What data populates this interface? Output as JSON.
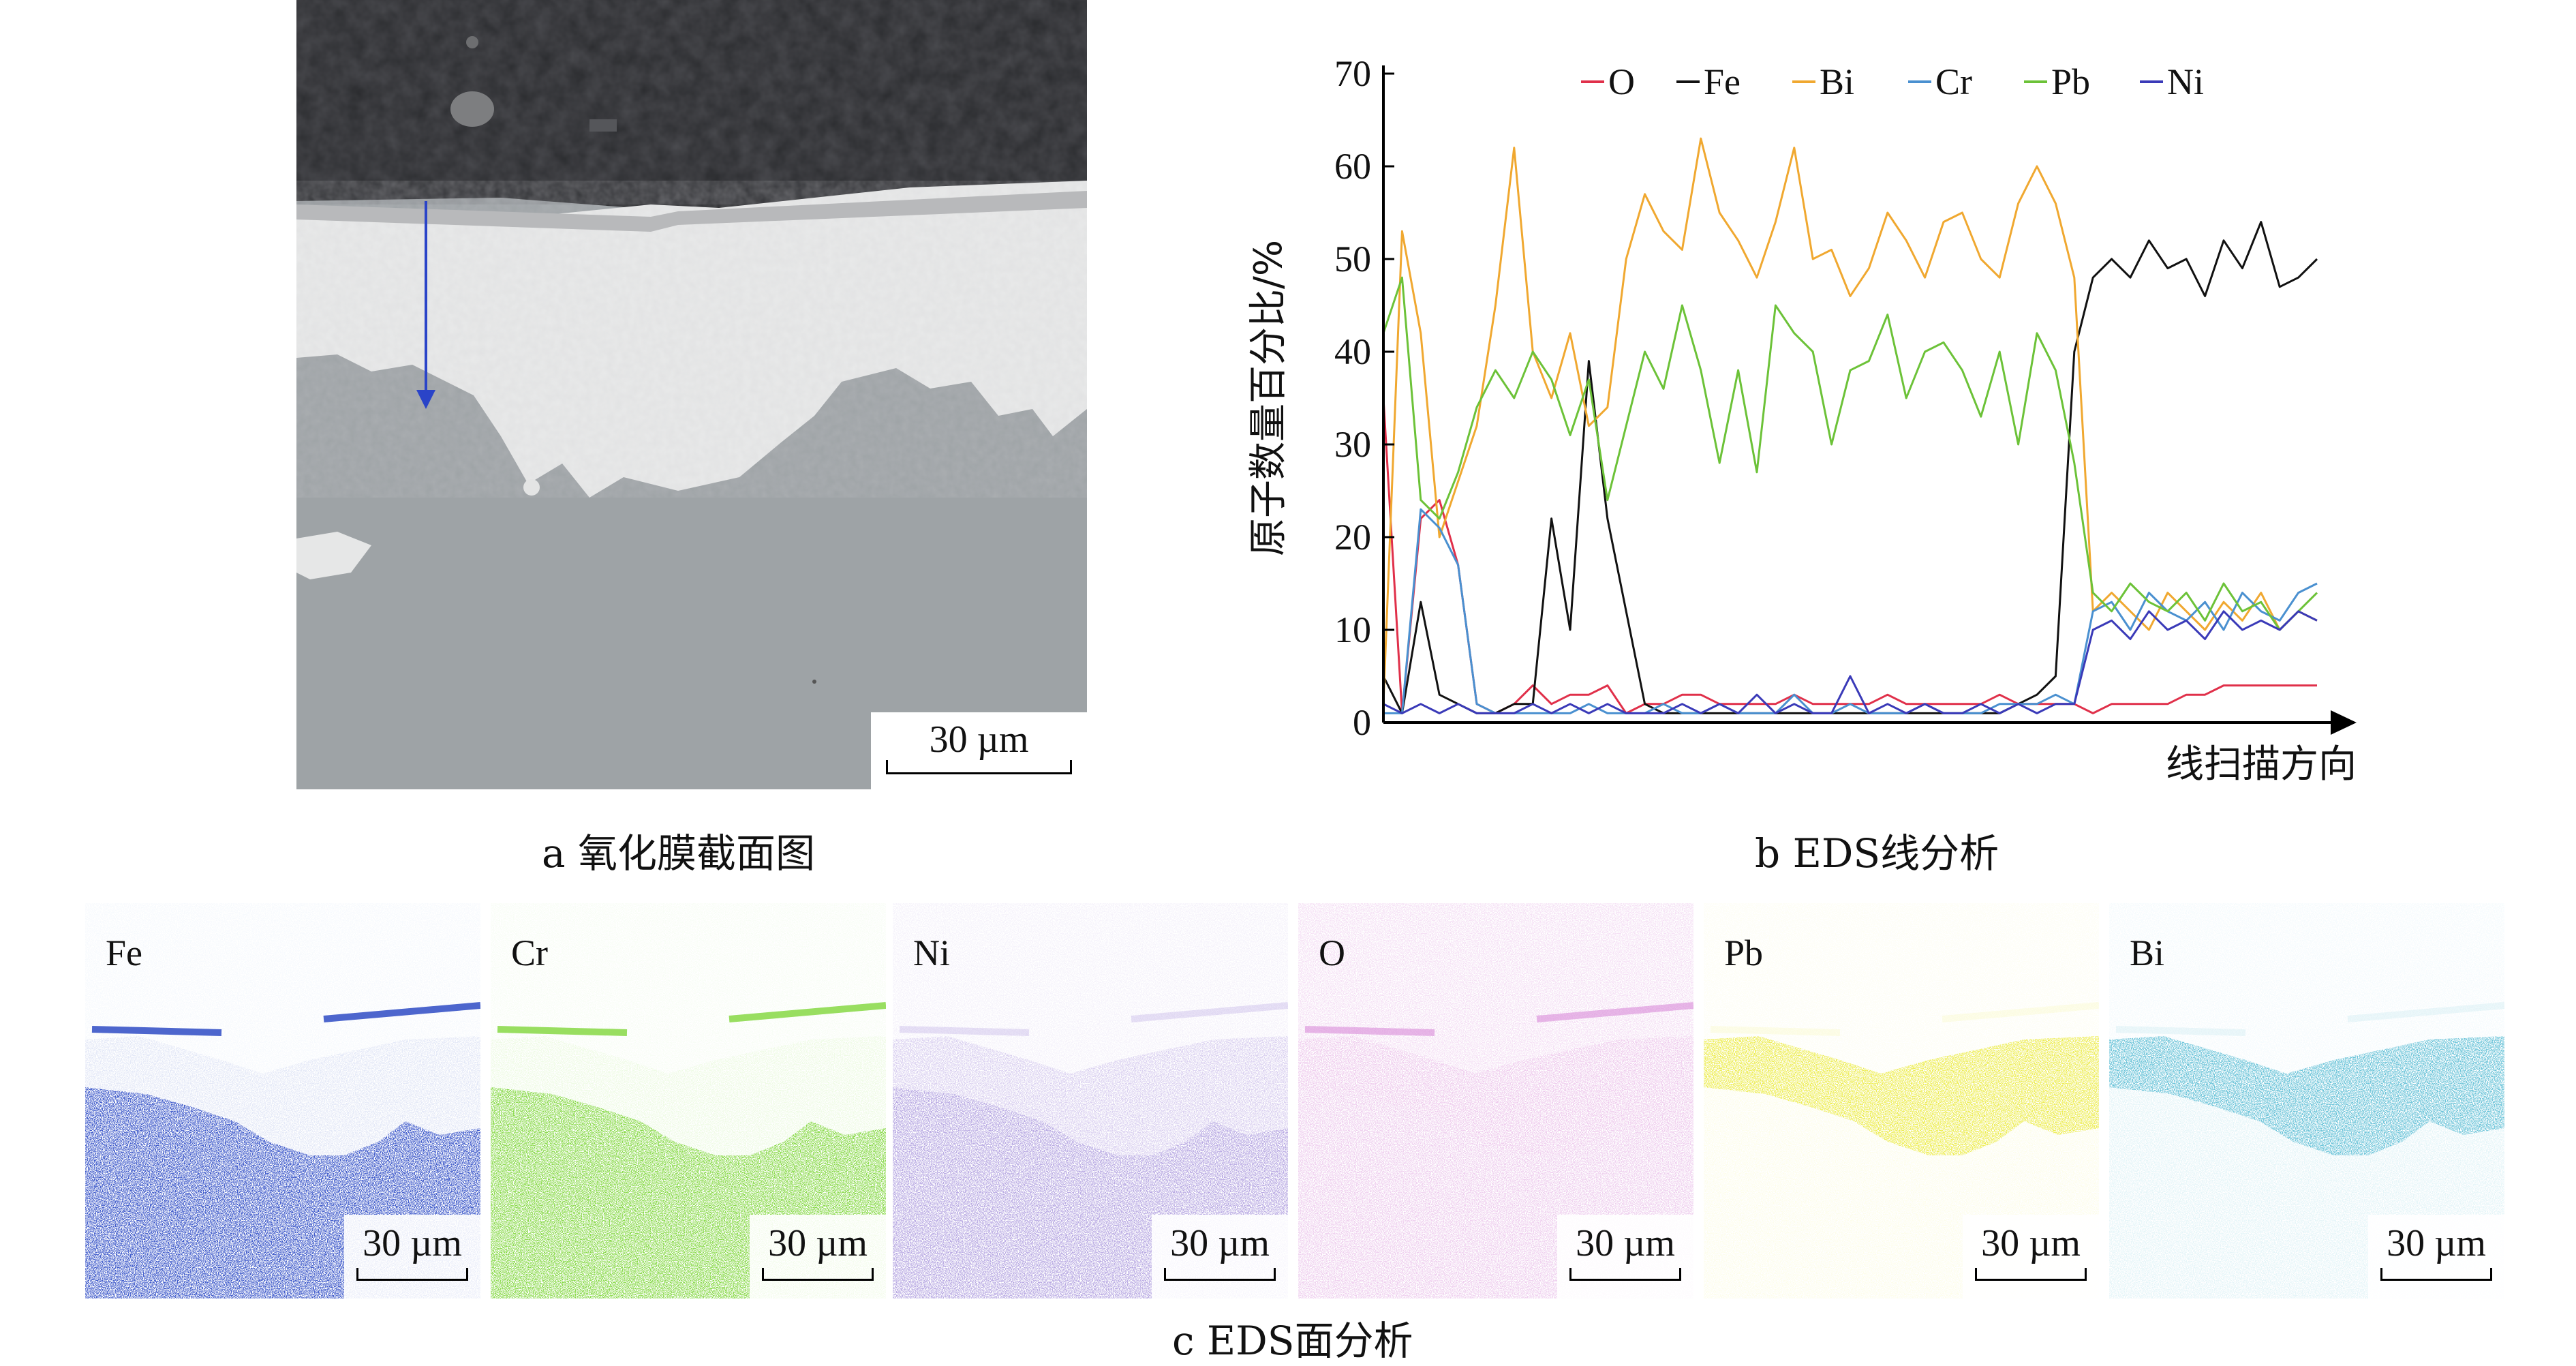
{
  "panel_a": {
    "scale_label": "30 µm",
    "caption": "a  氧化膜截面图"
  },
  "panel_b": {
    "caption": "b  EDS线分析"
  },
  "panel_c": {
    "caption": "c  EDS面分析",
    "maps": [
      {
        "element": "Fe",
        "scale_label": "30 µm",
        "color": "#3a55c8"
      },
      {
        "element": "Cr",
        "scale_label": "30 µm",
        "color": "#7fd63a"
      },
      {
        "element": "Ni",
        "scale_label": "30 µm",
        "color": "#8a6fd0"
      },
      {
        "element": "O",
        "scale_label": "30 µm",
        "color": "#d98ad8"
      },
      {
        "element": "Pb",
        "scale_label": "30 µm",
        "color": "#eaea3a"
      },
      {
        "element": "Bi",
        "scale_label": "30 µm",
        "color": "#4ab7d0"
      }
    ]
  },
  "chart_data": {
    "type": "line",
    "ylabel": "原子数量百分比/%",
    "xlabel": "线扫描方向",
    "ylim": [
      0,
      70
    ],
    "yticks": [
      0,
      10,
      20,
      30,
      40,
      50,
      60,
      70
    ],
    "xlim": [
      0,
      100
    ],
    "legend_position": "top",
    "x": [
      0,
      2,
      4,
      6,
      8,
      10,
      12,
      14,
      16,
      18,
      20,
      22,
      24,
      26,
      28,
      30,
      32,
      34,
      36,
      38,
      40,
      42,
      44,
      46,
      48,
      50,
      52,
      54,
      56,
      58,
      60,
      62,
      64,
      66,
      68,
      70,
      72,
      74,
      76,
      78,
      80,
      82,
      84,
      86,
      88,
      90,
      92,
      94,
      96,
      98,
      100
    ],
    "series": [
      {
        "name": "O",
        "color": "#e0304a",
        "values": [
          35,
          1,
          22,
          24,
          17,
          2,
          1,
          2,
          4,
          2,
          3,
          3,
          4,
          1,
          2,
          2,
          3,
          3,
          2,
          2,
          2,
          2,
          3,
          2,
          2,
          2,
          2,
          3,
          2,
          2,
          2,
          2,
          2,
          3,
          2,
          2,
          2,
          2,
          1,
          2,
          2,
          2,
          2,
          3,
          3,
          4,
          4,
          4,
          4,
          4,
          4
        ]
      },
      {
        "name": "Fe",
        "color": "#111111",
        "values": [
          5,
          1,
          13,
          3,
          2,
          1,
          1,
          2,
          2,
          22,
          10,
          39,
          22,
          12,
          2,
          1,
          1,
          1,
          1,
          1,
          1,
          1,
          1,
          1,
          1,
          1,
          1,
          1,
          1,
          1,
          1,
          1,
          1,
          1,
          2,
          3,
          5,
          40,
          48,
          50,
          48,
          52,
          49,
          50,
          46,
          52,
          49,
          54,
          47,
          48,
          50
        ]
      },
      {
        "name": "Bi",
        "color": "#f0a830",
        "values": [
          2,
          53,
          42,
          20,
          26,
          32,
          45,
          62,
          40,
          35,
          42,
          32,
          34,
          50,
          57,
          53,
          51,
          63,
          55,
          52,
          48,
          54,
          62,
          50,
          51,
          46,
          49,
          55,
          52,
          48,
          54,
          55,
          50,
          48,
          56,
          60,
          56,
          48,
          12,
          14,
          12,
          10,
          14,
          12,
          10,
          13,
          11,
          14,
          10,
          12,
          11
        ]
      },
      {
        "name": "Cr",
        "color": "#4a90d0",
        "values": [
          1,
          1,
          23,
          21,
          17,
          2,
          1,
          1,
          1,
          1,
          1,
          2,
          1,
          1,
          1,
          2,
          1,
          1,
          2,
          1,
          1,
          1,
          3,
          1,
          1,
          2,
          1,
          1,
          1,
          2,
          1,
          1,
          1,
          2,
          2,
          2,
          3,
          2,
          12,
          13,
          10,
          14,
          12,
          11,
          13,
          10,
          14,
          12,
          11,
          14,
          15
        ]
      },
      {
        "name": "Pb",
        "color": "#6cc238",
        "values": [
          42,
          48,
          24,
          22,
          27,
          34,
          38,
          35,
          40,
          37,
          31,
          37,
          24,
          32,
          40,
          36,
          45,
          38,
          28,
          38,
          27,
          45,
          42,
          40,
          30,
          38,
          39,
          44,
          35,
          40,
          41,
          38,
          33,
          40,
          30,
          42,
          38,
          28,
          14,
          12,
          15,
          13,
          12,
          14,
          11,
          15,
          12,
          13,
          10,
          12,
          14
        ]
      },
      {
        "name": "Ni",
        "color": "#3a3ab8",
        "values": [
          2,
          1,
          2,
          1,
          2,
          1,
          1,
          1,
          2,
          1,
          2,
          1,
          2,
          1,
          1,
          1,
          2,
          1,
          2,
          1,
          3,
          1,
          2,
          1,
          1,
          5,
          1,
          2,
          1,
          2,
          1,
          1,
          2,
          1,
          2,
          1,
          2,
          2,
          10,
          11,
          9,
          12,
          10,
          11,
          9,
          12,
          10,
          11,
          10,
          12,
          11
        ]
      }
    ]
  }
}
